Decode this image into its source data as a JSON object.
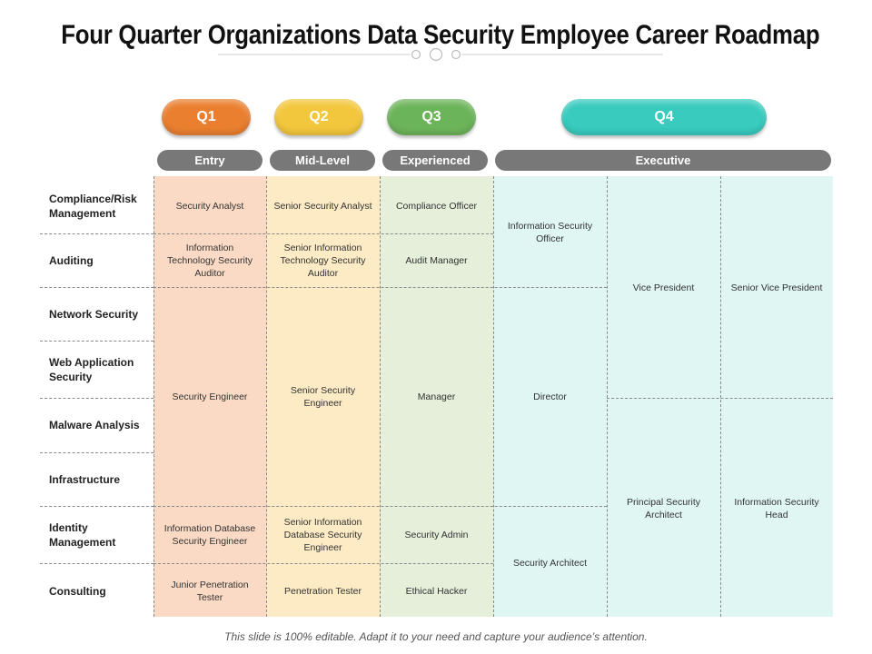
{
  "title": "Four Quarter Organizations Data Security Employee Career Roadmap",
  "quarters": [
    "Q1",
    "Q2",
    "Q3",
    "Q4"
  ],
  "levels": [
    "Entry",
    "Mid-Level",
    "Experienced",
    "Executive"
  ],
  "rows": [
    "Compliance/Risk Management",
    "Auditing",
    "Network Security",
    "Web Application Security",
    "Malware Analysis",
    "Infrastructure",
    "Identity Management",
    "Consulting"
  ],
  "cells": {
    "security_analyst": "Security Analyst",
    "senior_security_analyst": "Senior Security Analyst",
    "compliance_officer": "Compliance Officer",
    "information_security_officer": "Information Security Officer",
    "vice_president": "Vice President",
    "senior_vice_president": "Senior Vice President",
    "it_security_auditor": "Information Technology Security Auditor",
    "senior_it_security_auditor": "Senior Information Technology Security Auditor",
    "audit_manager": "Audit Manager",
    "security_engineer": "Security Engineer",
    "senior_security_engineer": "Senior Security Engineer",
    "manager": "Manager",
    "director": "Director",
    "principal_security_architect": "Principal Security Architect",
    "information_security_head": "Information Security Head",
    "information_database_security_engineer": "Information Database Security Engineer",
    "senior_information_database_security_engineer": "Senior Information Database Security Engineer",
    "security_admin": "Security Admin",
    "security_architect": "Security Architect",
    "junior_penetration_tester": "Junior Penetration Tester",
    "penetration_tester": "Penetration Tester",
    "ethical_hacker": "Ethical Hacker"
  },
  "footer": "This slide is 100% editable. Adapt it to your need and capture your audience’s attention."
}
